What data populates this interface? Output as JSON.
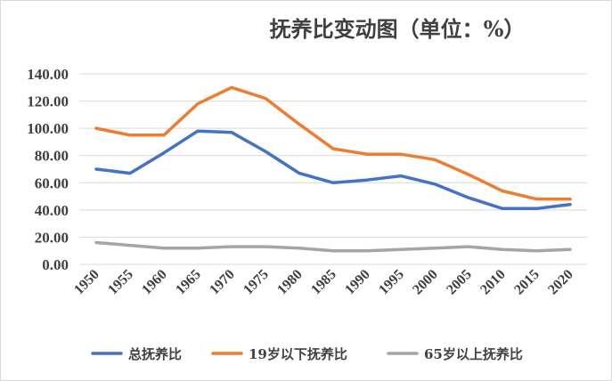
{
  "chart_data": {
    "type": "line",
    "title": "抚养比变动图（单位：%）",
    "xlabel": "",
    "ylabel": "",
    "categories": [
      "1950",
      "1955",
      "1960",
      "1965",
      "1970",
      "1975",
      "1980",
      "1985",
      "1990",
      "1995",
      "2000",
      "2005",
      "2010",
      "2015",
      "2020"
    ],
    "ylim": [
      0,
      140
    ],
    "yticks": [
      "0.00",
      "20.00",
      "40.00",
      "60.00",
      "80.00",
      "100.00",
      "120.00",
      "140.00"
    ],
    "grid": true,
    "legend_position": "bottom",
    "series": [
      {
        "name": "总抚养比",
        "color": "#4472c4",
        "values": [
          70,
          67,
          82,
          98,
          97,
          83,
          67,
          60,
          62,
          65,
          59,
          49,
          41,
          41,
          44
        ]
      },
      {
        "name": "19岁以下抚养比",
        "color": "#ed7d31",
        "values": [
          100,
          95,
          95,
          118,
          130,
          122,
          103,
          85,
          81,
          81,
          77,
          66,
          54,
          48,
          48
        ]
      },
      {
        "name": "65岁以上抚养比",
        "color": "#a5a5a5",
        "values": [
          16,
          14,
          12,
          12,
          13,
          13,
          12,
          10,
          10,
          11,
          12,
          13,
          11,
          10,
          11
        ]
      }
    ]
  }
}
